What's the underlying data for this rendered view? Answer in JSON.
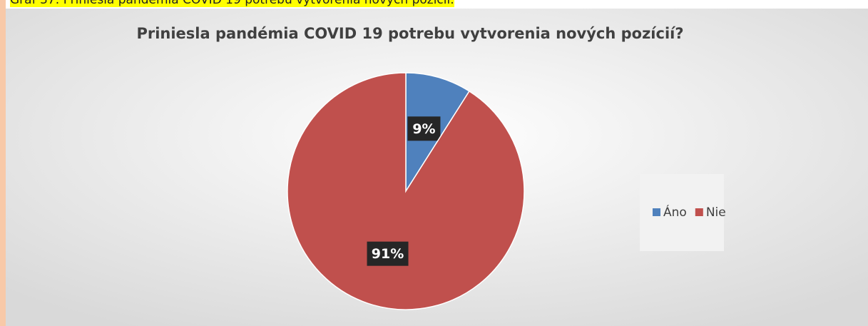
{
  "caption": "Graf 37: Priniesla pandémia COVID 19 potrebu vytvorenia nových pozícií.",
  "chart_data": {
    "type": "pie",
    "title": "Priniesla pandémia COVID 19 potrebu vytvorenia nových pozícií?",
    "categories": [
      "Áno",
      "Nie"
    ],
    "values": [
      9,
      91
    ],
    "value_labels": [
      "9%",
      "91%"
    ],
    "colors": [
      "#4f81bd",
      "#c0504d"
    ],
    "legend": "right"
  }
}
